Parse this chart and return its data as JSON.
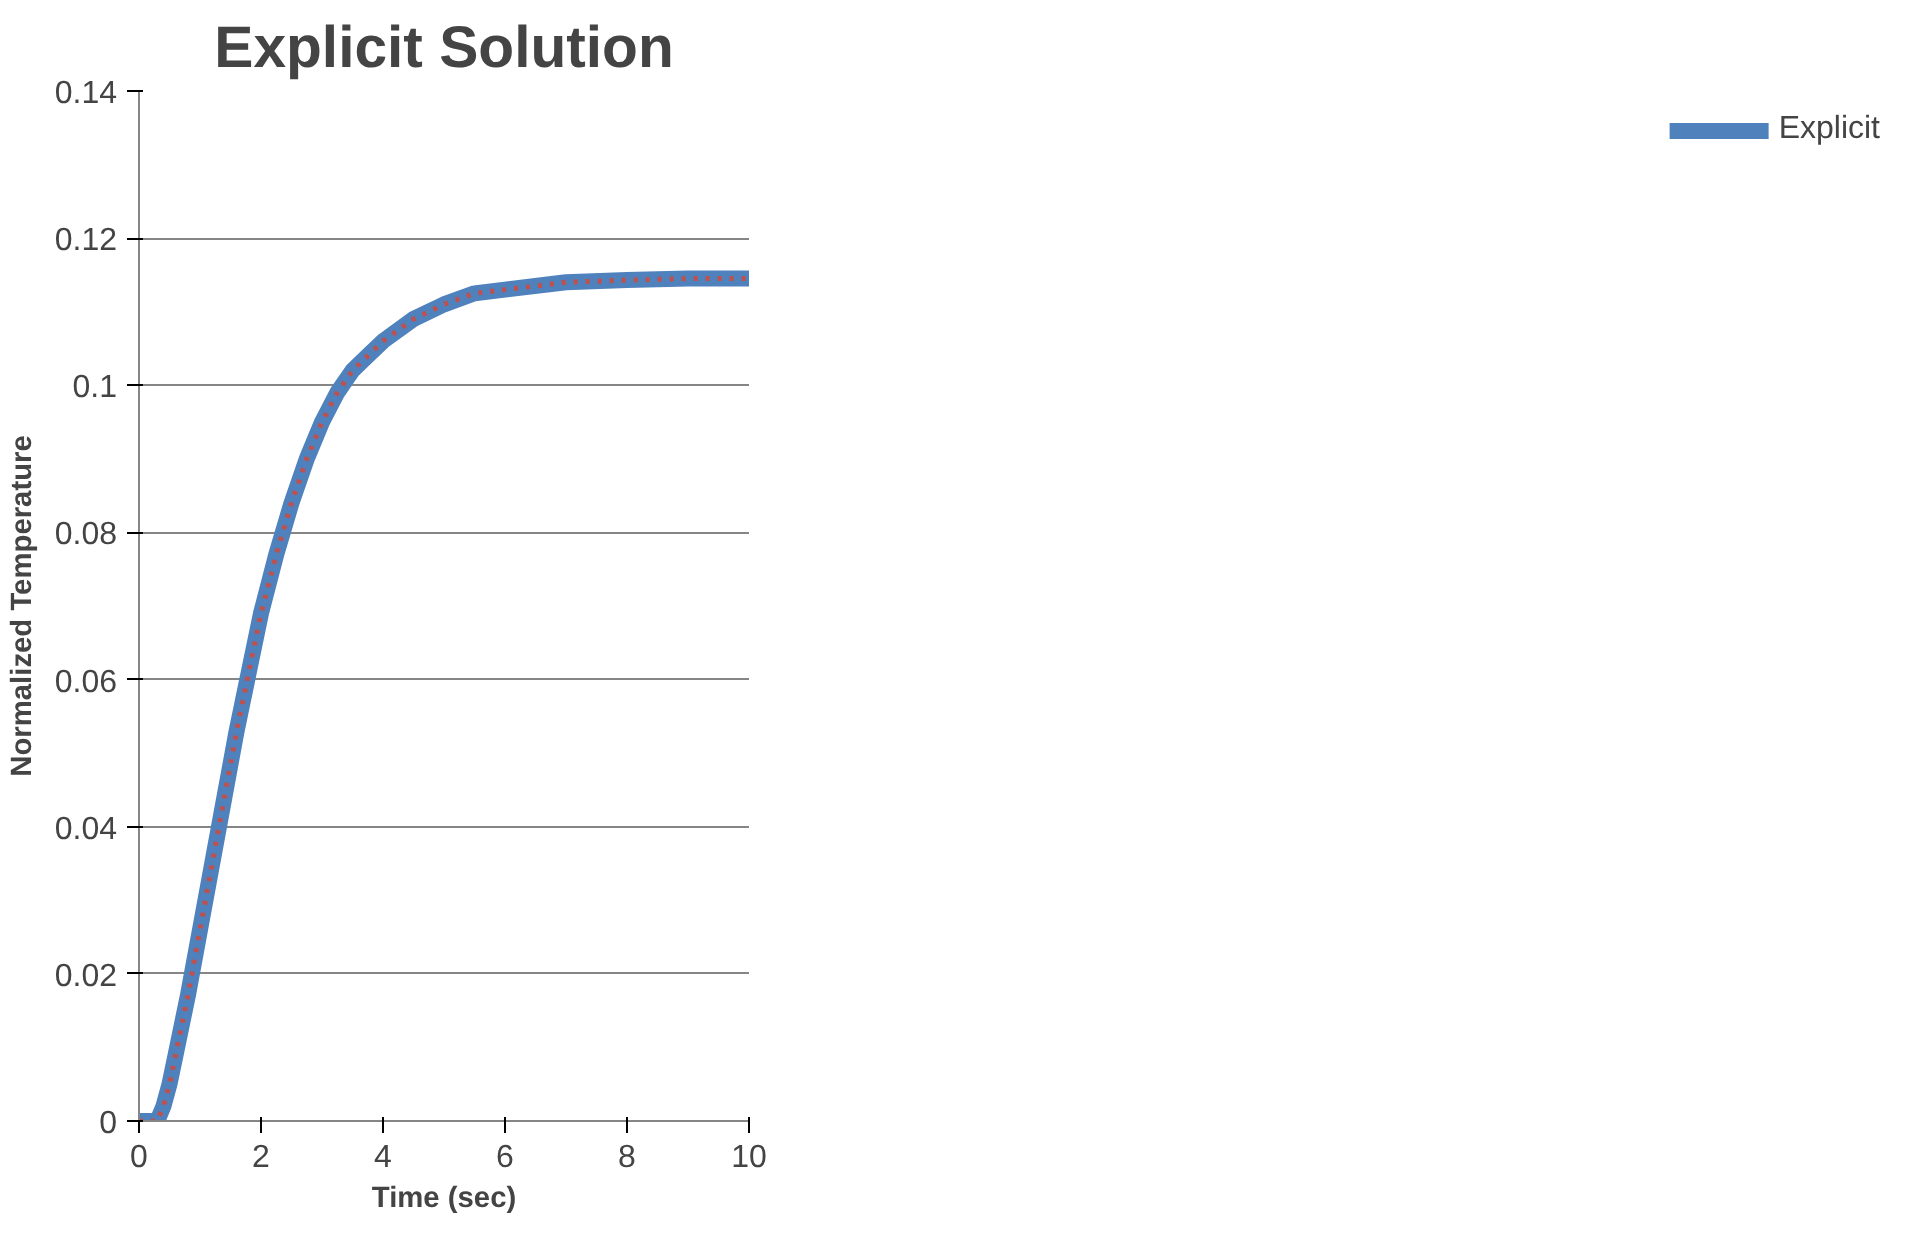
{
  "chart_data": {
    "type": "line",
    "title": "Explicit Solution",
    "xlabel": "Time (sec)",
    "ylabel": "Normalized Temperature",
    "x": [
      0,
      0.2,
      0.3,
      0.4,
      0.5,
      0.6,
      0.8,
      1.0,
      1.2,
      1.4,
      1.6,
      1.8,
      2.0,
      2.25,
      2.5,
      2.75,
      3,
      3.25,
      3.5,
      3.75,
      4,
      4.5,
      5,
      5.5,
      6,
      7,
      8,
      9,
      10
    ],
    "series": [
      {
        "name": "Explicit",
        "color": "#4f81bd",
        "line_style": "solid",
        "values": [
          0,
          0,
          0,
          0.002,
          0.005,
          0.009,
          0.017,
          0.026,
          0.035,
          0.044,
          0.053,
          0.061,
          0.069,
          0.077,
          0.084,
          0.09,
          0.095,
          0.099,
          0.102,
          0.104,
          0.106,
          0.109,
          0.111,
          0.1125,
          0.113,
          0.114,
          0.1143,
          0.1145,
          0.1145
        ]
      },
      {
        "color": "#c0504d",
        "line_style": "dotted",
        "values": [
          0,
          0,
          0,
          0.002,
          0.005,
          0.009,
          0.017,
          0.026,
          0.035,
          0.044,
          0.053,
          0.061,
          0.069,
          0.077,
          0.084,
          0.09,
          0.095,
          0.099,
          0.102,
          0.104,
          0.106,
          0.109,
          0.111,
          0.1125,
          0.113,
          0.114,
          0.1143,
          0.1145,
          0.1145
        ]
      }
    ],
    "xlim": [
      0,
      10
    ],
    "xticks": [
      0,
      2,
      4,
      6,
      8,
      10
    ],
    "ylim": [
      0,
      0.14
    ],
    "yticks": [
      0,
      0.02,
      0.04,
      0.06,
      0.08,
      0.1,
      0.12,
      0.14
    ],
    "grid": "y",
    "legend": "right",
    "marker": "none"
  }
}
